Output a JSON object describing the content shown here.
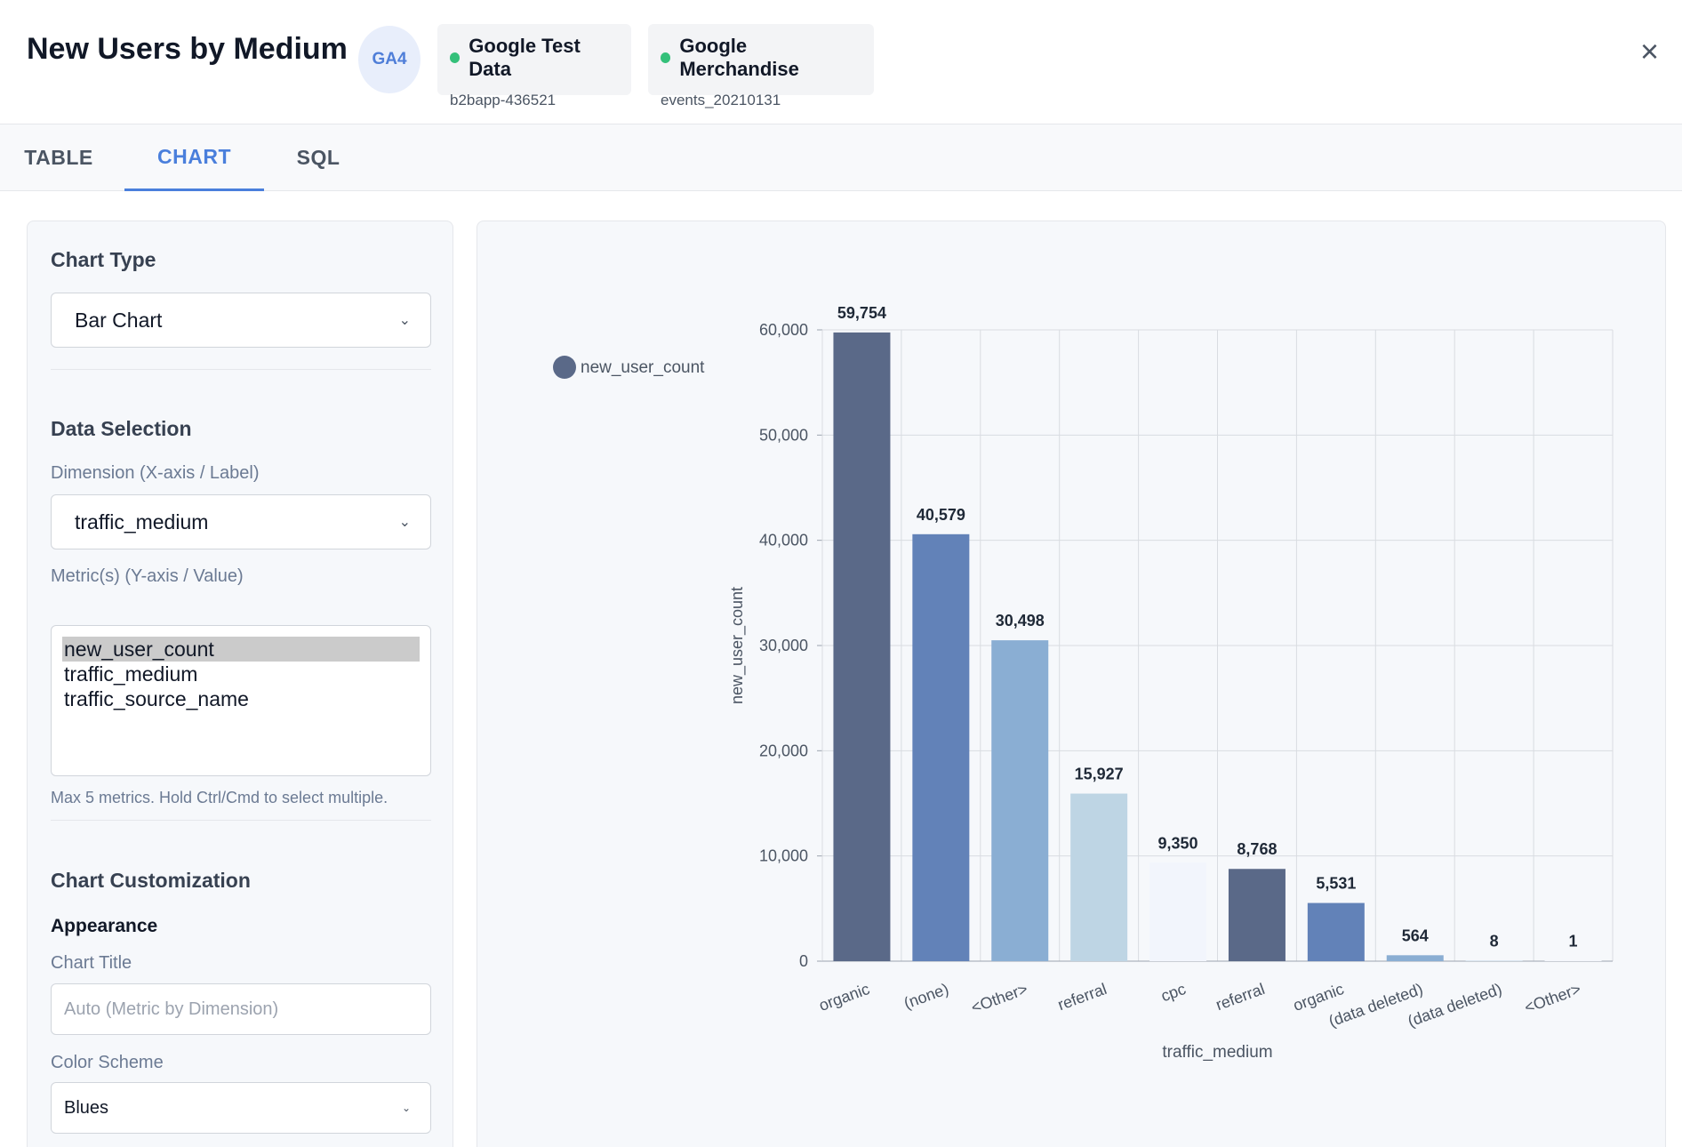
{
  "header": {
    "title": "New Users by Medium",
    "badge": "GA4",
    "sources": [
      {
        "name": "Google Test Data",
        "sub": "b2bapp-436521"
      },
      {
        "name": "Google Merchandise",
        "sub": "events_20210131"
      }
    ],
    "close_icon": "×"
  },
  "tabs": [
    {
      "label": "TABLE"
    },
    {
      "label": "CHART"
    },
    {
      "label": "SQL"
    }
  ],
  "active_tab": "CHART",
  "sidebar": {
    "chart_type": {
      "title": "Chart Type",
      "value": "Bar Chart"
    },
    "data_selection": {
      "title": "Data Selection",
      "dimension_label": "Dimension (X-axis / Label)",
      "dimension_value": "traffic_medium",
      "metrics_label": "Metric(s) (Y-axis / Value)",
      "metrics_options": [
        "new_user_count",
        "traffic_medium",
        "traffic_source_name"
      ],
      "metrics_selected": "new_user_count",
      "hint": "Max 5 metrics. Hold Ctrl/Cmd to select multiple."
    },
    "customization": {
      "title": "Chart Customization",
      "appearance": "Appearance",
      "chart_title_label": "Chart Title",
      "chart_title_placeholder": "Auto (Metric by Dimension)",
      "color_scheme_label": "Color Scheme",
      "color_scheme_value": "Blues"
    }
  },
  "chart_data": {
    "type": "bar",
    "categories": [
      "organic",
      "(none)",
      "<Other>",
      "referral",
      "cpc",
      "referral",
      "organic",
      "(data deleted)",
      "(data deleted)",
      "<Other>"
    ],
    "series": [
      {
        "name": "new_user_count",
        "values": [
          59754,
          40579,
          30498,
          15927,
          9350,
          8768,
          5531,
          564,
          8,
          1
        ]
      }
    ],
    "value_labels": [
      "59,754",
      "40,579",
      "30,498",
      "15,927",
      "9,350",
      "8,768",
      "5,531",
      "564",
      "8",
      "1"
    ],
    "bar_colors": [
      "#5a6988",
      "#6282b8",
      "#8aaed3",
      "#bed5e4",
      "#f2f5fc",
      "#5a6988",
      "#6282b8",
      "#8aaed3",
      "#bed5e4",
      "#f2f5fc"
    ],
    "legend_color": "#5a6988",
    "xlabel": "traffic_medium",
    "ylabel": "new_user_count",
    "ylim": [
      0,
      60000
    ],
    "yticks": [
      0,
      10000,
      20000,
      30000,
      40000,
      50000,
      60000
    ],
    "ytick_labels": [
      "0",
      "10,000",
      "20,000",
      "30,000",
      "40,000",
      "50,000",
      "60,000"
    ],
    "grid": true,
    "legend_position": "top-left"
  }
}
